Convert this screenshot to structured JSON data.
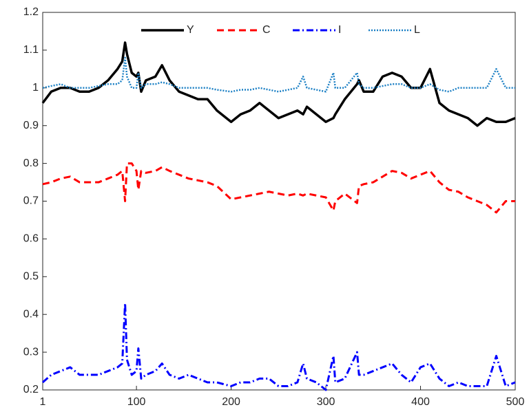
{
  "chart_data": {
    "type": "line",
    "x": [
      1,
      10,
      20,
      30,
      40,
      50,
      60,
      70,
      80,
      85,
      88,
      90,
      95,
      100,
      102,
      105,
      110,
      120,
      127,
      135,
      145,
      155,
      165,
      175,
      185,
      200,
      210,
      220,
      230,
      240,
      250,
      260,
      270,
      276,
      280,
      290,
      300,
      308,
      310,
      320,
      333,
      335,
      340,
      350,
      360,
      370,
      380,
      390,
      400,
      410,
      420,
      430,
      440,
      450,
      460,
      470,
      480,
      490,
      500
    ],
    "series": [
      {
        "name": "Y",
        "color": "#000000",
        "line_style": "solid",
        "values": [
          0.96,
          0.99,
          1.0,
          1.0,
          0.99,
          0.99,
          1.0,
          1.02,
          1.05,
          1.07,
          1.12,
          1.09,
          1.04,
          1.03,
          1.04,
          0.99,
          1.02,
          1.03,
          1.06,
          1.02,
          0.99,
          0.98,
          0.97,
          0.97,
          0.94,
          0.91,
          0.93,
          0.94,
          0.96,
          0.94,
          0.92,
          0.93,
          0.94,
          0.93,
          0.95,
          0.93,
          0.91,
          0.92,
          0.93,
          0.97,
          1.01,
          1.02,
          0.99,
          0.99,
          1.03,
          1.04,
          1.03,
          1.0,
          1.0,
          1.05,
          0.96,
          0.94,
          0.93,
          0.92,
          0.9,
          0.92,
          0.91,
          0.91,
          0.92
        ]
      },
      {
        "name": "C",
        "color": "#ff0000",
        "line_style": "dashed",
        "values": [
          0.745,
          0.75,
          0.76,
          0.765,
          0.75,
          0.75,
          0.75,
          0.76,
          0.77,
          0.78,
          0.7,
          0.8,
          0.8,
          0.78,
          0.73,
          0.78,
          0.775,
          0.78,
          0.79,
          0.78,
          0.77,
          0.76,
          0.755,
          0.75,
          0.74,
          0.705,
          0.71,
          0.715,
          0.72,
          0.725,
          0.72,
          0.715,
          0.72,
          0.715,
          0.72,
          0.715,
          0.71,
          0.675,
          0.7,
          0.72,
          0.695,
          0.74,
          0.745,
          0.75,
          0.765,
          0.78,
          0.775,
          0.76,
          0.77,
          0.78,
          0.75,
          0.73,
          0.725,
          0.71,
          0.7,
          0.69,
          0.67,
          0.7,
          0.7
        ]
      },
      {
        "name": "I",
        "color": "#0000ff",
        "line_style": "dashdot",
        "values": [
          0.22,
          0.24,
          0.25,
          0.26,
          0.24,
          0.24,
          0.24,
          0.25,
          0.26,
          0.27,
          0.43,
          0.28,
          0.24,
          0.25,
          0.31,
          0.23,
          0.24,
          0.25,
          0.27,
          0.24,
          0.23,
          0.24,
          0.23,
          0.22,
          0.22,
          0.21,
          0.22,
          0.22,
          0.23,
          0.23,
          0.21,
          0.21,
          0.22,
          0.27,
          0.23,
          0.22,
          0.2,
          0.29,
          0.22,
          0.23,
          0.3,
          0.24,
          0.24,
          0.25,
          0.26,
          0.27,
          0.24,
          0.22,
          0.26,
          0.27,
          0.23,
          0.21,
          0.22,
          0.21,
          0.21,
          0.21,
          0.29,
          0.21,
          0.22
        ]
      },
      {
        "name": "L",
        "color": "#1a7fc4",
        "line_style": "dotted",
        "values": [
          1.0,
          1.005,
          1.01,
          1.0,
          1.0,
          1.0,
          1.005,
          1.01,
          1.01,
          1.02,
          1.08,
          1.03,
          1.0,
          1.0,
          1.04,
          1.0,
          1.01,
          1.01,
          1.015,
          1.01,
          1.0,
          1.0,
          1.0,
          1.0,
          0.995,
          0.99,
          0.995,
          0.995,
          1.0,
          0.995,
          0.99,
          0.995,
          1.0,
          1.03,
          1.0,
          0.995,
          0.99,
          1.04,
          1.0,
          1.0,
          1.04,
          1.01,
          1.0,
          1.0,
          1.005,
          1.01,
          1.01,
          1.0,
          1.0,
          1.01,
          0.995,
          0.99,
          1.0,
          1.0,
          1.0,
          1.0,
          1.05,
          1.0,
          1.0
        ]
      }
    ],
    "xlim": [
      1,
      500
    ],
    "xticks": [
      1,
      100,
      200,
      300,
      400,
      500
    ],
    "ylim": [
      0.2,
      1.2
    ],
    "yticks": [
      0.2,
      0.3,
      0.4,
      0.5,
      0.6,
      0.7,
      0.8,
      0.9,
      1,
      1.1,
      1.2
    ],
    "grid": false,
    "legend": "top"
  }
}
